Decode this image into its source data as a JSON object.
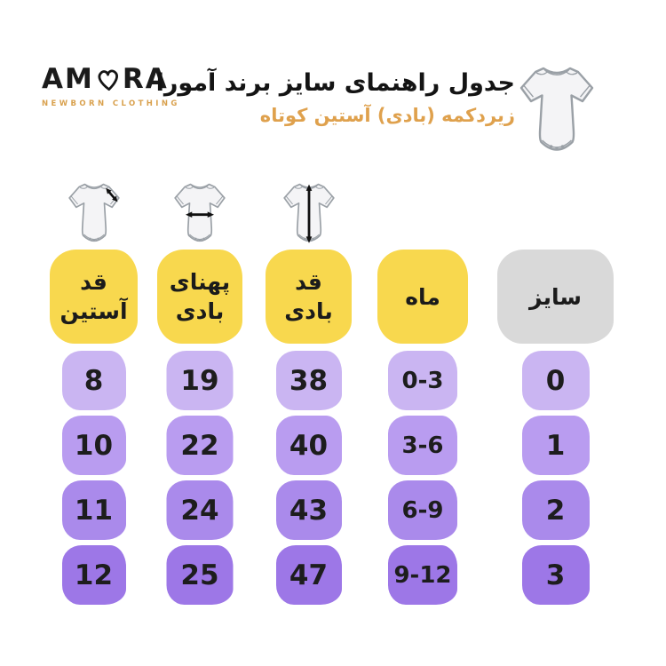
{
  "brand": {
    "logo_prefix": "AM",
    "logo_heart_icon": "heart-outline-icon",
    "logo_suffix": "RA",
    "tagline": "NEWBORN CLOTHING",
    "tagline_color": "#d9a14e"
  },
  "header": {
    "title": "جدول راهنمای سایز برند آمورا",
    "subtitle": "زیردکمه (بادی) آستین کوتاه",
    "subtitle_color": "#dfa14d",
    "illustration": "baby-bodysuit-short-sleeve"
  },
  "table": {
    "direction": "rtl",
    "header_yellow": "#f8d84e",
    "header_gray": "#d9d9d9",
    "row_colors": [
      "#cab5f2",
      "#b99cf0",
      "#aa8aeb",
      "#9d77e7"
    ],
    "columns": [
      {
        "key": "size",
        "label": "سایز",
        "header_bg": "#d9d9d9",
        "icon": null,
        "values": [
          "0",
          "1",
          "2",
          "3"
        ]
      },
      {
        "key": "month",
        "label": "ماه",
        "header_bg": "#f8d84e",
        "icon": null,
        "values": [
          "0-3",
          "3-6",
          "6-9",
          "9-12"
        ]
      },
      {
        "key": "body-length",
        "label": "قد بادی",
        "header_bg": "#f8d84e",
        "icon": "bodysuit-vertical-arrow-icon",
        "values": [
          "38",
          "40",
          "43",
          "47"
        ]
      },
      {
        "key": "body-width",
        "label": "پهنای بادی",
        "header_bg": "#f8d84e",
        "icon": "bodysuit-horizontal-arrow-icon",
        "values": [
          "19",
          "22",
          "24",
          "25"
        ]
      },
      {
        "key": "sleeve-length",
        "label": "قد آستین",
        "header_bg": "#f8d84e",
        "icon": "bodysuit-diagonal-arrow-icon",
        "values": [
          "8",
          "10",
          "11",
          "12"
        ]
      }
    ]
  },
  "chart_data": {
    "type": "table",
    "title": "جدول راهنمای سایز برند آمورا",
    "subtitle": "زیردکمه (بادی) آستین کوتاه",
    "columns_rtl_order": [
      "سایز",
      "ماه",
      "قد بادی",
      "پهنای بادی",
      "قد آستین"
    ],
    "rows": [
      {
        "سایز": "0",
        "ماه": "0-3",
        "قد بادی": "38",
        "پهنای بادی": "19",
        "قد آستین": "8"
      },
      {
        "سایز": "1",
        "ماه": "3-6",
        "قد بادی": "40",
        "پهنای بادی": "22",
        "قد آستین": "10"
      },
      {
        "سایز": "2",
        "ماه": "6-9",
        "قد بادی": "43",
        "پهنای بادی": "24",
        "قد آستین": "11"
      },
      {
        "سایز": "3",
        "ماه": "9-12",
        "قد بادی": "47",
        "پهنای بادی": "25",
        "قد آستین": "12"
      }
    ]
  }
}
